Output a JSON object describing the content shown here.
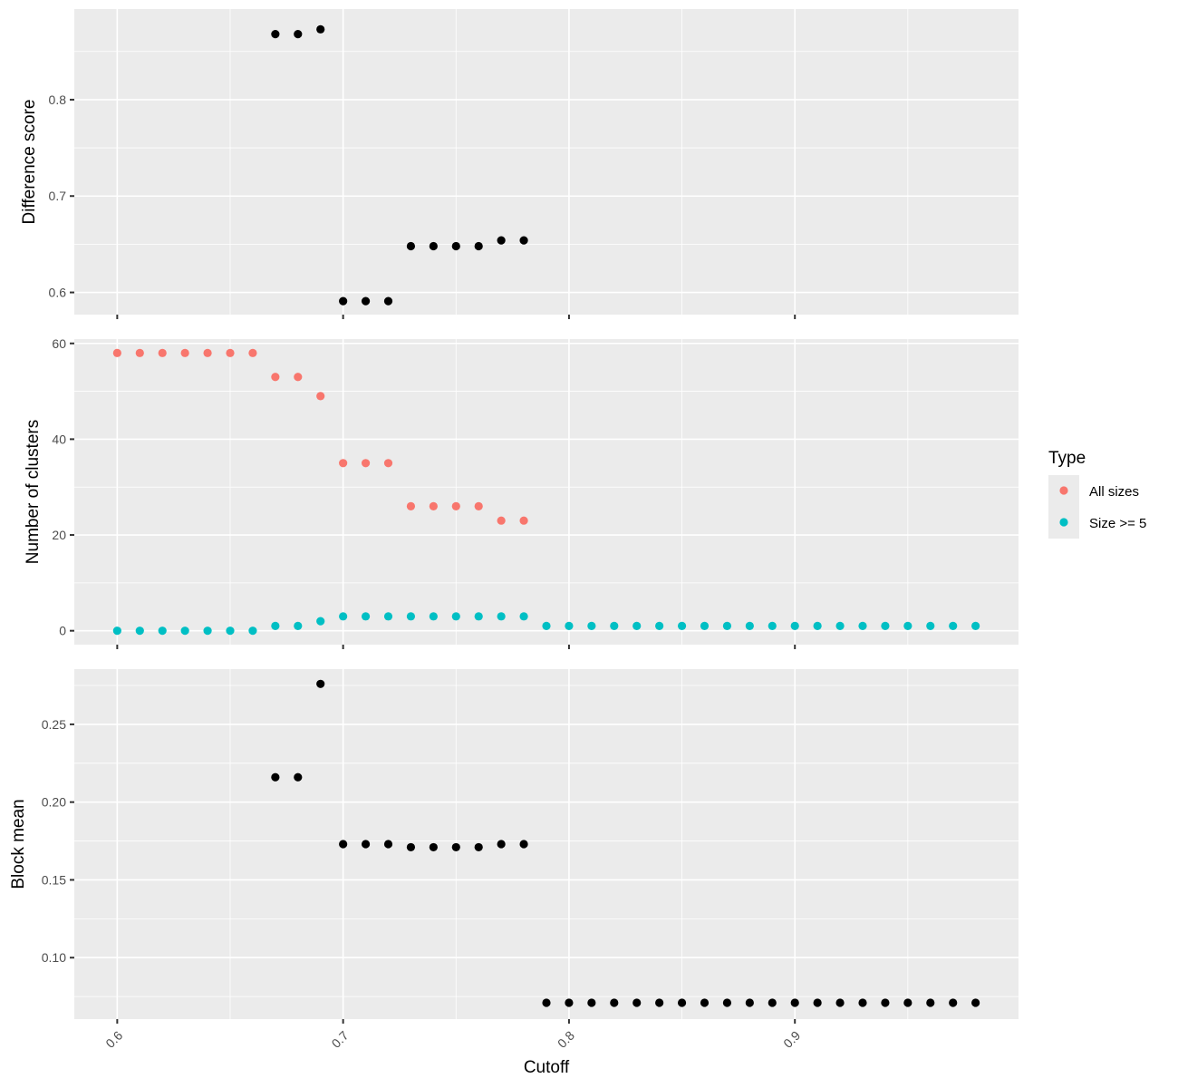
{
  "chart_data": [
    {
      "type": "scatter",
      "panel": "top",
      "ylabel": "Difference score",
      "yticks": [
        0.6,
        0.7,
        0.8
      ],
      "ylim": [
        0.577,
        0.894
      ],
      "xlim": [
        0.581,
        0.999
      ],
      "series": [
        {
          "color": "#000000",
          "x": [
            0.67,
            0.68,
            0.69,
            0.7,
            0.71,
            0.72,
            0.73,
            0.74,
            0.75,
            0.76,
            0.77,
            0.78
          ],
          "y": [
            0.868,
            0.868,
            0.873,
            0.591,
            0.591,
            0.591,
            0.648,
            0.648,
            0.648,
            0.648,
            0.654,
            0.654
          ]
        }
      ]
    },
    {
      "type": "scatter",
      "panel": "middle",
      "ylabel": "Number of clusters",
      "yticks": [
        0,
        20,
        40,
        60
      ],
      "ylim": [
        -2.9,
        60.9
      ],
      "xlim": [
        0.581,
        0.999
      ],
      "legend": {
        "title": "Type",
        "position": "right"
      },
      "series": [
        {
          "name": "All sizes",
          "color": "#F8766D",
          "x": [
            0.6,
            0.61,
            0.62,
            0.63,
            0.64,
            0.65,
            0.66,
            0.67,
            0.68,
            0.69,
            0.7,
            0.71,
            0.72,
            0.73,
            0.74,
            0.75,
            0.76,
            0.77,
            0.78
          ],
          "y": [
            58,
            58,
            58,
            58,
            58,
            58,
            58,
            53,
            53,
            49,
            35,
            35,
            35,
            26,
            26,
            26,
            26,
            23,
            23
          ]
        },
        {
          "name": "Size >= 5",
          "color": "#00BFC4",
          "x": [
            0.6,
            0.61,
            0.62,
            0.63,
            0.64,
            0.65,
            0.66,
            0.67,
            0.68,
            0.69,
            0.7,
            0.71,
            0.72,
            0.73,
            0.74,
            0.75,
            0.76,
            0.77,
            0.78,
            0.79,
            0.8,
            0.81,
            0.82,
            0.83,
            0.84,
            0.85,
            0.86,
            0.87,
            0.88,
            0.89,
            0.9,
            0.91,
            0.92,
            0.93,
            0.94,
            0.95,
            0.96,
            0.97,
            0.98
          ],
          "y": [
            0,
            0,
            0,
            0,
            0,
            0,
            0,
            1,
            1,
            2,
            3,
            3,
            3,
            3,
            3,
            3,
            3,
            3,
            3,
            1,
            1,
            1,
            1,
            1,
            1,
            1,
            1,
            1,
            1,
            1,
            1,
            1,
            1,
            1,
            1,
            1,
            1,
            1,
            1
          ]
        }
      ]
    },
    {
      "type": "scatter",
      "panel": "bottom",
      "ylabel": "Block mean",
      "xlabel": "Cutoff",
      "yticks": [
        0.1,
        0.15,
        0.2,
        0.25
      ],
      "ytick_labels": [
        "0.10",
        "0.15",
        "0.20",
        "0.25"
      ],
      "xticks": [
        0.6,
        0.7,
        0.8,
        0.9
      ],
      "ylim": [
        0.0605,
        0.2855
      ],
      "xlim": [
        0.581,
        0.999
      ],
      "series": [
        {
          "color": "#000000",
          "x": [
            0.67,
            0.68,
            0.69,
            0.7,
            0.71,
            0.72,
            0.73,
            0.74,
            0.75,
            0.76,
            0.77,
            0.78,
            0.79,
            0.8,
            0.81,
            0.82,
            0.83,
            0.84,
            0.85,
            0.86,
            0.87,
            0.88,
            0.89,
            0.9,
            0.91,
            0.92,
            0.93,
            0.94,
            0.95,
            0.96,
            0.97,
            0.98
          ],
          "y": [
            0.216,
            0.216,
            0.276,
            0.173,
            0.173,
            0.173,
            0.171,
            0.171,
            0.171,
            0.171,
            0.173,
            0.173,
            0.071,
            0.071,
            0.071,
            0.071,
            0.071,
            0.071,
            0.071,
            0.071,
            0.071,
            0.071,
            0.071,
            0.071,
            0.071,
            0.071,
            0.071,
            0.071,
            0.071,
            0.071,
            0.071,
            0.071
          ]
        }
      ]
    }
  ]
}
